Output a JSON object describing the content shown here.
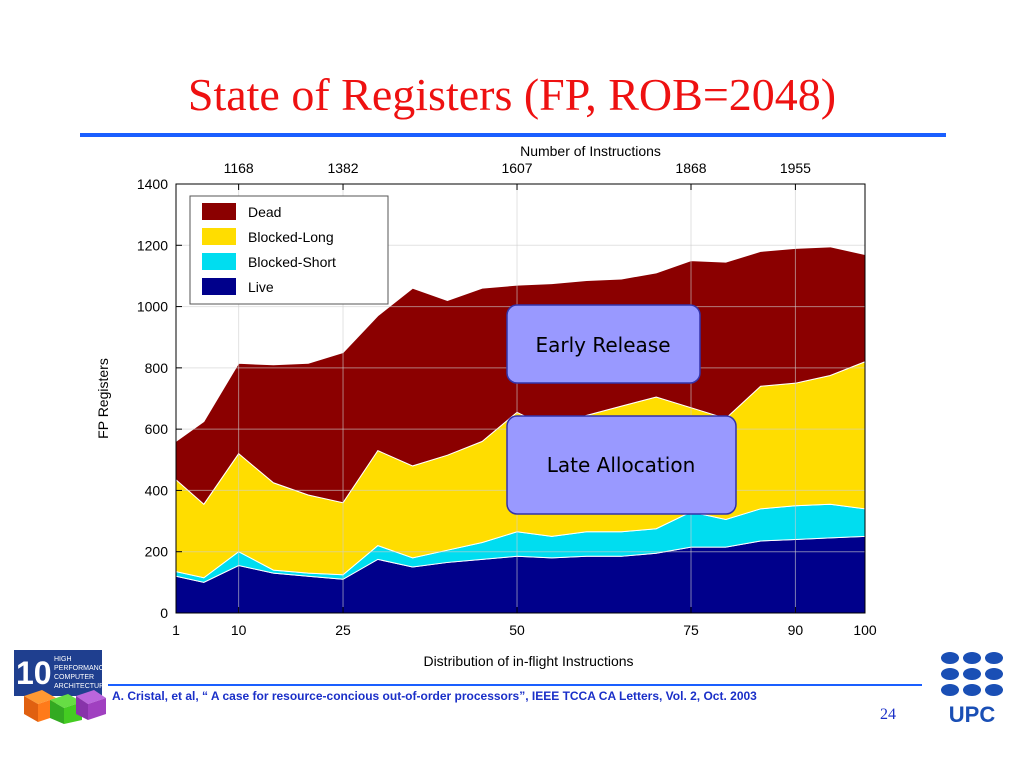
{
  "slide": {
    "title": "State of Registers (FP, ROB=2048)",
    "citation": "A. Cristal, et al, “ A case for resource-concious out-of-order processors”, IEEE TCCA CA Letters, Vol. 2, Oct. 2003",
    "page_number": "24",
    "logo_left_number": "10",
    "logo_left_text": [
      "HIGH",
      "PERFORMANCE",
      "COMPUTER",
      "ARCHITECTURE"
    ],
    "logo_right_text": "UPC",
    "callouts": [
      "Early Release",
      "Late Allocation"
    ]
  },
  "chart_data": {
    "type": "area",
    "stacked": true,
    "title": "",
    "xlabel": "Distribution of in-flight Instructions",
    "ylabel": "FP Registers",
    "top_axis_label": "Number of Instructions",
    "xlim": [
      1,
      100
    ],
    "ylim": [
      0,
      1400
    ],
    "yticks": [
      0,
      200,
      400,
      600,
      800,
      1000,
      1200,
      1400
    ],
    "xticks": [
      1,
      10,
      25,
      50,
      75,
      90,
      100
    ],
    "top_ticks": [
      {
        "x": 10,
        "label": "1168"
      },
      {
        "x": 25,
        "label": "1382"
      },
      {
        "x": 50,
        "label": "1607"
      },
      {
        "x": 75,
        "label": "1868"
      },
      {
        "x": 90,
        "label": "1955"
      }
    ],
    "grid": true,
    "legend": "top-left",
    "colors": {
      "Dead": "#8b0000",
      "Blocked-Long": "#ffdd00",
      "Blocked-Short": "#00ddf0",
      "Live": "#00008b"
    },
    "x": [
      1,
      5,
      10,
      15,
      20,
      25,
      30,
      35,
      40,
      45,
      50,
      55,
      60,
      65,
      70,
      75,
      80,
      85,
      90,
      95,
      100
    ],
    "series": [
      {
        "name": "Live",
        "values": [
          120,
          100,
          155,
          130,
          120,
          110,
          175,
          150,
          165,
          175,
          185,
          180,
          185,
          185,
          195,
          215,
          215,
          235,
          240,
          245,
          250
        ]
      },
      {
        "name": "Blocked-Short",
        "values": [
          15,
          15,
          45,
          10,
          10,
          15,
          45,
          30,
          40,
          55,
          80,
          70,
          80,
          80,
          80,
          115,
          90,
          105,
          110,
          110,
          90
        ]
      },
      {
        "name": "Blocked-Long",
        "values": [
          300,
          240,
          320,
          285,
          255,
          235,
          310,
          300,
          310,
          330,
          390,
          350,
          380,
          410,
          430,
          340,
          330,
          400,
          400,
          420,
          480
        ]
      },
      {
        "name": "Dead",
        "values": [
          125,
          270,
          295,
          385,
          430,
          490,
          440,
          580,
          505,
          500,
          415,
          475,
          440,
          415,
          405,
          480,
          510,
          440,
          440,
          420,
          350
        ]
      }
    ]
  }
}
